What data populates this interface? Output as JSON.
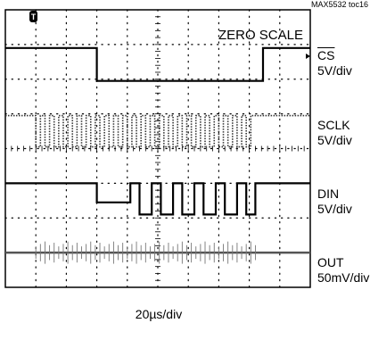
{
  "figure_code": "MAX5532 toc16",
  "chart_data": {
    "type": "line",
    "title": "ZERO SCALE",
    "timebase": "20µs/div",
    "grid": true,
    "divisions": {
      "x": 10,
      "y": 8
    },
    "x_unit": "div",
    "xlim": [
      0,
      10
    ],
    "y_unit": "div",
    "ylim": [
      0,
      8
    ],
    "series": [
      {
        "name": "CS",
        "scale": "5V/div",
        "style": "solid",
        "x": [
          0,
          3.0,
          3.0,
          8.45,
          8.45,
          10
        ],
        "y": [
          6.9,
          6.9,
          5.95,
          5.95,
          6.9,
          6.9
        ]
      },
      {
        "name": "SCLK",
        "scale": "5V/div",
        "style": "dotted",
        "idle_level": 4.95,
        "low_level": 4.05,
        "clock_start": 1.0,
        "clock_stop": 8.2,
        "clock_period": 0.3
      },
      {
        "name": "DIN",
        "scale": "5V/div",
        "style": "solid",
        "x": [
          0,
          3.0,
          3.0,
          4.1,
          4.1,
          4.4,
          4.4,
          4.8,
          4.8,
          5.1,
          5.1,
          5.5,
          5.5,
          5.8,
          5.8,
          6.2,
          6.2,
          6.5,
          6.5,
          6.9,
          6.9,
          7.2,
          7.2,
          7.6,
          7.6,
          7.9,
          7.9,
          8.2,
          8.2,
          10
        ],
        "y": [
          3.0,
          3.0,
          2.45,
          2.45,
          3.0,
          3.0,
          2.1,
          2.1,
          3.0,
          3.0,
          2.1,
          2.1,
          3.0,
          3.0,
          2.1,
          2.1,
          3.0,
          3.0,
          2.1,
          2.1,
          3.0,
          3.0,
          2.1,
          2.1,
          3.0,
          3.0,
          2.1,
          2.1,
          3.0,
          3.0
        ]
      },
      {
        "name": "OUT",
        "scale": "50mV/div",
        "style": "solid",
        "baseline": 1.0,
        "feedthrough_start": 1.0,
        "feedthrough_stop": 8.3
      }
    ],
    "labels": [
      {
        "id": "cs",
        "name": "CS",
        "scale": "5V/div"
      },
      {
        "id": "sclk",
        "name": "SCLK",
        "scale": "5V/div"
      },
      {
        "id": "din",
        "name": "DIN",
        "scale": "5V/div"
      },
      {
        "id": "out",
        "name": "OUT",
        "scale": "50mV/div"
      }
    ]
  },
  "markers": {
    "trigger": "T"
  }
}
